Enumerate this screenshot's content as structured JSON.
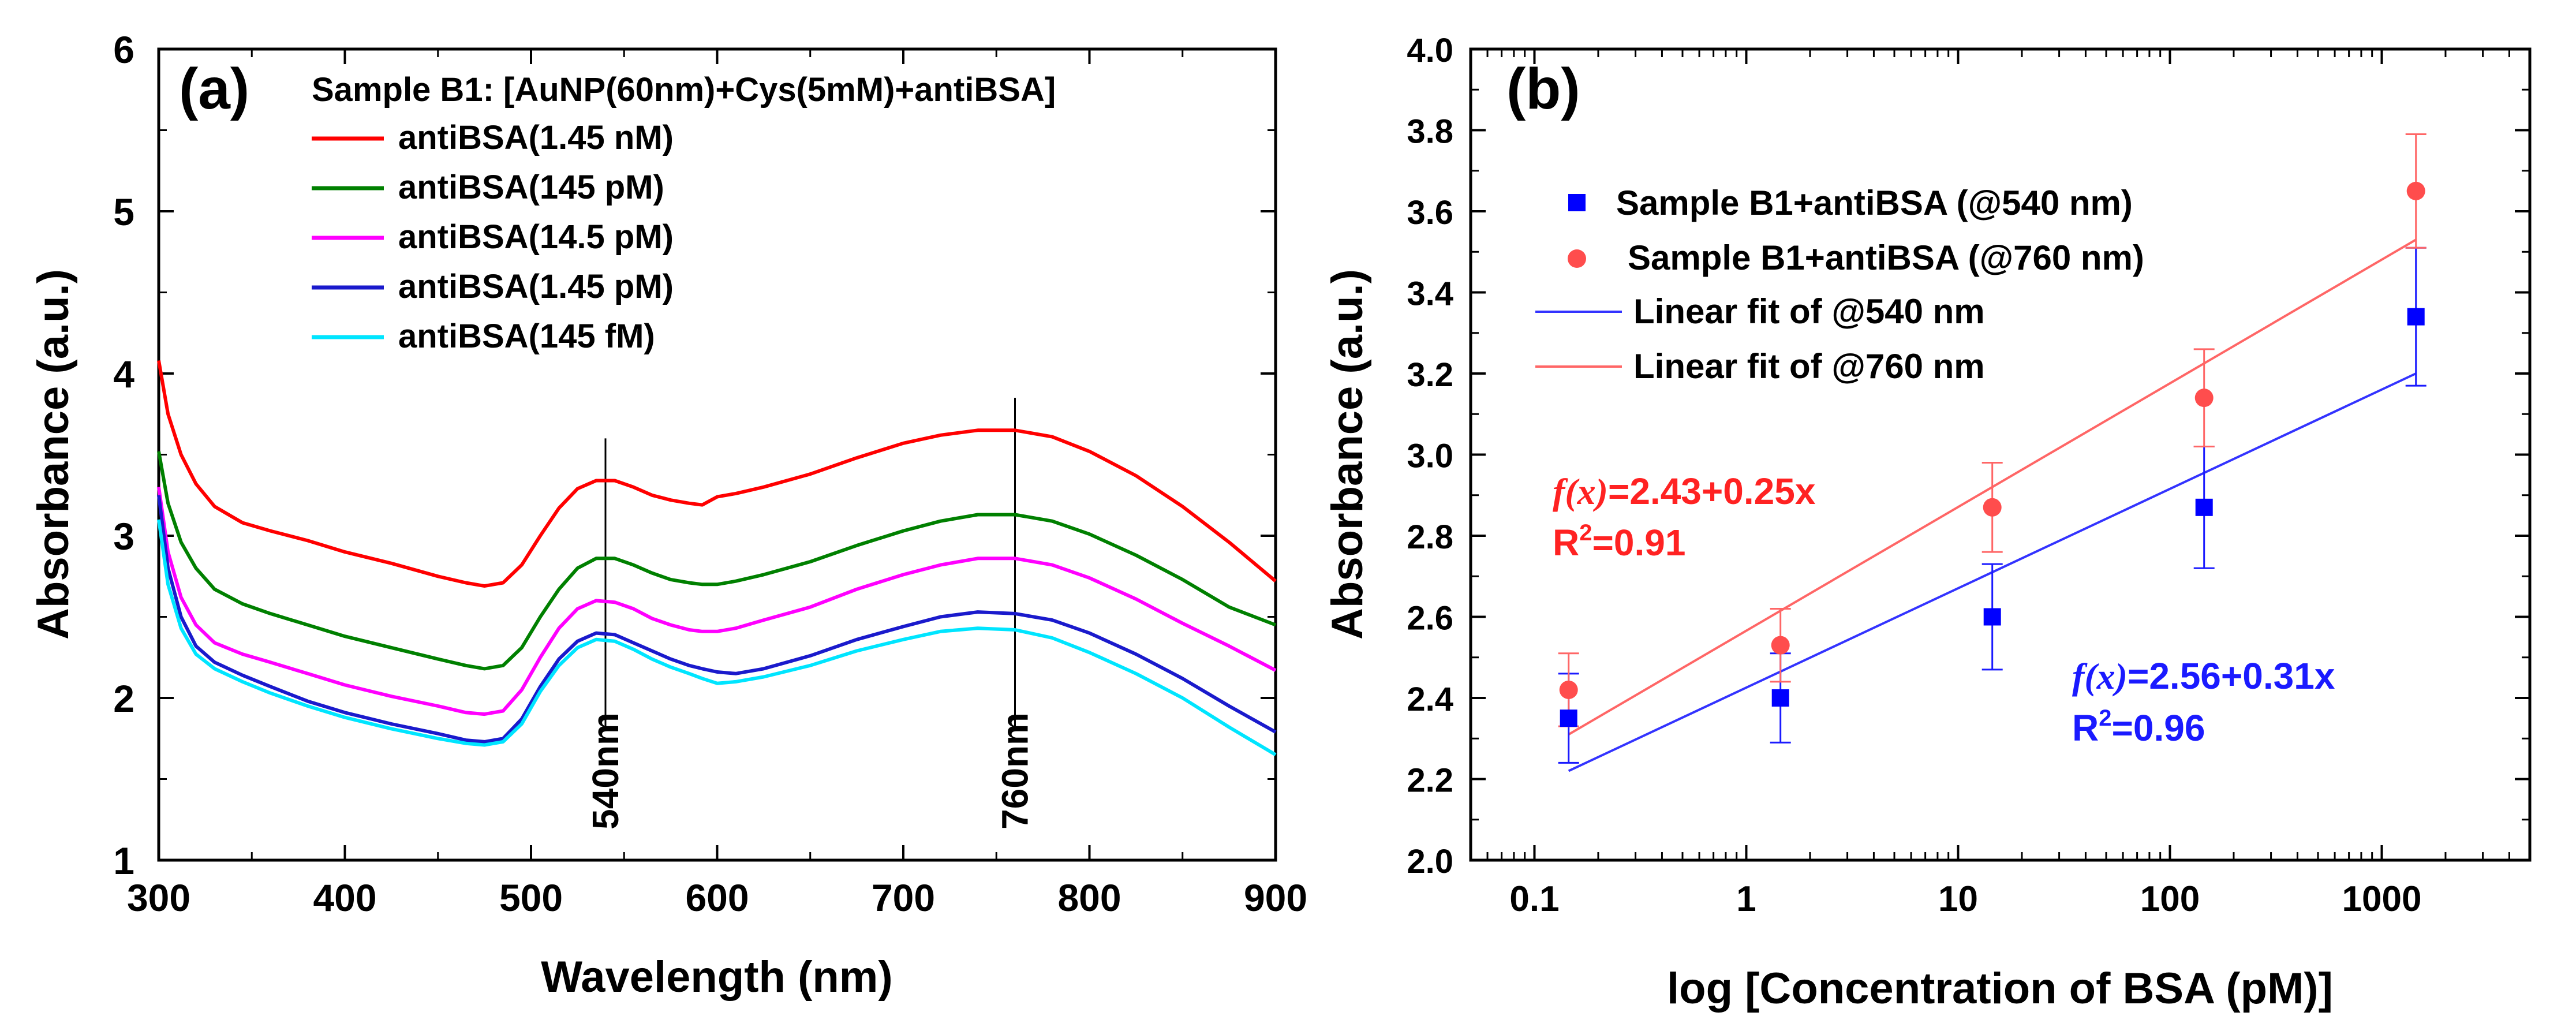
{
  "chart_data": [
    {
      "type": "line",
      "panel_label": "(a)",
      "title": "Sample B1: [AuNP(60nm)+Cys(5mM)+antiBSA]",
      "xlabel": "Wavelength (nm)",
      "ylabel": "Absorbance (a.u.)",
      "xlim": [
        300,
        900
      ],
      "ylim": [
        1,
        6
      ],
      "xticks": [
        "300",
        "400",
        "500",
        "600",
        "700",
        "800",
        "900"
      ],
      "yticks": [
        "1",
        "2",
        "3",
        "4",
        "5",
        "6"
      ],
      "annotations": [
        {
          "label": "540nm",
          "x": 540,
          "y_from": 1.8,
          "y_to": 3.6
        },
        {
          "label": "760nm",
          "x": 760,
          "y_from": 1.8,
          "y_to": 3.85
        }
      ],
      "x": [
        300,
        305,
        312,
        320,
        330,
        345,
        360,
        380,
        400,
        425,
        450,
        465,
        475,
        485,
        495,
        505,
        515,
        525,
        535,
        545,
        555,
        565,
        575,
        585,
        592,
        600,
        610,
        625,
        650,
        675,
        700,
        720,
        740,
        760,
        780,
        800,
        825,
        850,
        875,
        900
      ],
      "series": [
        {
          "name": "antiBSA(1.45 nM)",
          "color": "#ff0000",
          "values": [
            4.08,
            3.75,
            3.5,
            3.32,
            3.18,
            3.08,
            3.03,
            2.97,
            2.9,
            2.83,
            2.75,
            2.71,
            2.69,
            2.71,
            2.82,
            3.0,
            3.17,
            3.29,
            3.34,
            3.34,
            3.3,
            3.25,
            3.22,
            3.2,
            3.19,
            3.24,
            3.26,
            3.3,
            3.38,
            3.48,
            3.57,
            3.62,
            3.65,
            3.65,
            3.61,
            3.52,
            3.37,
            3.18,
            2.96,
            2.72
          ]
        },
        {
          "name": "antiBSA(145 pM)",
          "color": "#008000",
          "values": [
            3.52,
            3.2,
            2.96,
            2.8,
            2.67,
            2.58,
            2.52,
            2.45,
            2.38,
            2.31,
            2.24,
            2.2,
            2.18,
            2.2,
            2.31,
            2.5,
            2.67,
            2.8,
            2.86,
            2.86,
            2.82,
            2.77,
            2.73,
            2.71,
            2.7,
            2.7,
            2.72,
            2.76,
            2.84,
            2.94,
            3.03,
            3.09,
            3.13,
            3.13,
            3.09,
            3.01,
            2.88,
            2.73,
            2.56,
            2.45
          ]
        },
        {
          "name": "antiBSA(14.5 pM)",
          "color": "#ff00ff",
          "values": [
            3.3,
            2.9,
            2.62,
            2.45,
            2.34,
            2.27,
            2.22,
            2.15,
            2.08,
            2.01,
            1.95,
            1.91,
            1.9,
            1.92,
            2.05,
            2.25,
            2.43,
            2.55,
            2.6,
            2.59,
            2.55,
            2.49,
            2.45,
            2.42,
            2.41,
            2.41,
            2.43,
            2.48,
            2.56,
            2.67,
            2.76,
            2.82,
            2.86,
            2.86,
            2.82,
            2.74,
            2.61,
            2.46,
            2.32,
            2.17
          ]
        },
        {
          "name": "antiBSA(1.45 pM)",
          "color": "#1a1acc",
          "values": [
            3.25,
            2.8,
            2.5,
            2.32,
            2.22,
            2.14,
            2.07,
            1.98,
            1.91,
            1.84,
            1.78,
            1.74,
            1.73,
            1.75,
            1.87,
            2.07,
            2.24,
            2.35,
            2.4,
            2.39,
            2.34,
            2.29,
            2.24,
            2.2,
            2.18,
            2.16,
            2.15,
            2.18,
            2.26,
            2.36,
            2.44,
            2.5,
            2.53,
            2.52,
            2.48,
            2.4,
            2.27,
            2.12,
            1.95,
            1.79
          ]
        },
        {
          "name": "antiBSA(145 fM)",
          "color": "#00e5ff",
          "values": [
            3.1,
            2.7,
            2.43,
            2.27,
            2.18,
            2.1,
            2.03,
            1.95,
            1.88,
            1.81,
            1.75,
            1.72,
            1.71,
            1.73,
            1.84,
            2.04,
            2.2,
            2.31,
            2.36,
            2.35,
            2.3,
            2.24,
            2.19,
            2.15,
            2.12,
            2.09,
            2.1,
            2.13,
            2.2,
            2.29,
            2.36,
            2.41,
            2.43,
            2.42,
            2.37,
            2.28,
            2.15,
            2.0,
            1.82,
            1.65
          ]
        }
      ]
    },
    {
      "type": "scatter",
      "panel_label": "(b)",
      "xlabel": "log [Concentration of BSA (pM)]",
      "ylabel": "Absorbance (a.u.)",
      "xscale": "log",
      "xlim": [
        0.05,
        5000
      ],
      "ylim": [
        2.0,
        4.0
      ],
      "xticks": [
        "0.1",
        "1",
        "10",
        "100",
        "1000"
      ],
      "yticks": [
        "2.0",
        "2.2",
        "2.4",
        "2.6",
        "2.8",
        "3.0",
        "3.2",
        "3.4",
        "3.6",
        "3.8",
        "4.0"
      ],
      "x": [
        0.145,
        1.45,
        14.5,
        145,
        1450
      ],
      "series": [
        {
          "name": "Sample B1+antiBSA (@540 nm)",
          "marker": "square",
          "color": "#0000ff",
          "values": [
            2.35,
            2.4,
            2.6,
            2.87,
            3.34
          ],
          "errors": [
            0.11,
            0.11,
            0.13,
            0.15,
            0.17
          ]
        },
        {
          "name": "Sample B1+antiBSA (@760 nm)",
          "marker": "circle",
          "color": "#ff4d4d",
          "values": [
            2.42,
            2.53,
            2.87,
            3.14,
            3.65
          ],
          "errors": [
            0.09,
            0.09,
            0.11,
            0.12,
            0.14
          ]
        }
      ],
      "fits": [
        {
          "name": "Linear fit of @540 nm",
          "color": "#3333ff",
          "x_from": 0.145,
          "x_to": 1450,
          "y_from": 2.22,
          "y_to": 3.2
        },
        {
          "name": "Linear fit of @760 nm",
          "color": "#ff6666",
          "x_from": 0.145,
          "x_to": 1450,
          "y_from": 2.31,
          "y_to": 3.53
        }
      ],
      "fit_labels": [
        {
          "fx": "f(x)",
          "eq": "=2.43+0.25x",
          "r2_pre": "R",
          "r2_sup": "2",
          "r2_val": "=0.91",
          "color": "#ff2222"
        },
        {
          "fx": "f(x)",
          "eq": "=2.56+0.31x",
          "r2_pre": "R",
          "r2_sup": "2",
          "r2_val": "=0.96",
          "color": "#1a1aff"
        }
      ]
    }
  ]
}
